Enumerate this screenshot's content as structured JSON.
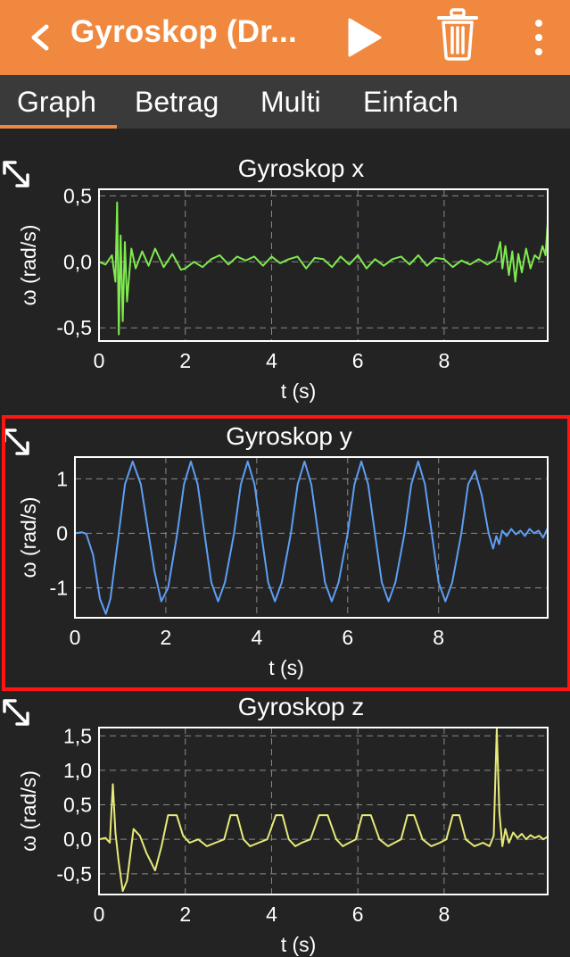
{
  "appbar": {
    "title": "Gyroskop (Dr...",
    "back_icon": "chevron-left-icon",
    "play_icon": "play-icon",
    "trash_icon": "trash-icon",
    "menu_icon": "more-vert-icon",
    "color": "#F0893F"
  },
  "tabs": [
    {
      "label": "Graph",
      "active": true
    },
    {
      "label": "Betrag",
      "active": false
    },
    {
      "label": "Multi",
      "active": false
    },
    {
      "label": "Einfach",
      "active": false
    }
  ],
  "chart_data": [
    {
      "type": "line",
      "title": "Gyroskop x",
      "xlabel": "t (s)",
      "ylabel": "ω (rad/s)",
      "xlim": [
        0,
        10.4
      ],
      "ylim": [
        -0.6,
        0.55
      ],
      "xticks": [
        0,
        2,
        4,
        6,
        8
      ],
      "xtick_labels": [
        "0",
        "2",
        "4",
        "6",
        "8"
      ],
      "yticks": [
        0.5,
        0.0,
        -0.5
      ],
      "ytick_labels": [
        "0,5",
        "0,0",
        "-0,5"
      ],
      "grid": true,
      "series": [
        {
          "color": "#7FEA4E",
          "x": [
            0,
            0.15,
            0.3,
            0.38,
            0.42,
            0.46,
            0.5,
            0.55,
            0.6,
            0.65,
            0.75,
            0.85,
            1.0,
            1.15,
            1.3,
            1.5,
            1.7,
            1.9,
            2.0,
            2.2,
            2.4,
            2.6,
            2.8,
            3.0,
            3.2,
            3.4,
            3.6,
            3.8,
            4.0,
            4.2,
            4.4,
            4.6,
            4.8,
            5.0,
            5.2,
            5.4,
            5.6,
            5.8,
            6.0,
            6.2,
            6.4,
            6.6,
            6.8,
            7.0,
            7.2,
            7.4,
            7.6,
            7.8,
            8.0,
            8.2,
            8.4,
            8.6,
            8.8,
            9.0,
            9.2,
            9.3,
            9.35,
            9.42,
            9.5,
            9.58,
            9.65,
            9.72,
            9.8,
            9.9,
            10.0,
            10.1,
            10.2,
            10.28,
            10.35,
            10.4
          ],
          "y": [
            0.0,
            -0.02,
            0.05,
            -0.15,
            0.45,
            -0.55,
            0.2,
            -0.45,
            0.15,
            -0.3,
            0.1,
            -0.05,
            0.08,
            -0.03,
            0.1,
            -0.04,
            0.06,
            -0.06,
            -0.05,
            0.0,
            -0.04,
            0.02,
            0.05,
            -0.02,
            0.04,
            0.01,
            0.04,
            -0.03,
            0.04,
            -0.01,
            0.02,
            0.04,
            -0.05,
            0.03,
            0.02,
            -0.04,
            0.04,
            -0.02,
            0.05,
            -0.05,
            0.02,
            -0.03,
            0.02,
            0.04,
            -0.02,
            0.05,
            -0.03,
            0.03,
            0.02,
            -0.04,
            0.01,
            -0.02,
            0.02,
            -0.02,
            0.02,
            0.15,
            -0.05,
            0.12,
            -0.1,
            0.08,
            -0.15,
            0.06,
            -0.08,
            0.1,
            -0.05,
            0.05,
            0.02,
            0.12,
            0.05,
            0.3
          ]
        }
      ]
    },
    {
      "type": "line",
      "title": "Gyroskop y",
      "xlabel": "t (s)",
      "ylabel": "ω (rad/s)",
      "xlim": [
        0,
        10.4
      ],
      "ylim": [
        -1.55,
        1.4
      ],
      "xticks": [
        0,
        2,
        4,
        6,
        8
      ],
      "xtick_labels": [
        "0",
        "2",
        "4",
        "6",
        "8"
      ],
      "yticks": [
        1,
        0,
        -1
      ],
      "ytick_labels": [
        "1",
        "0",
        "-1"
      ],
      "grid": true,
      "series": [
        {
          "color": "#5E9EF4",
          "x": [
            0,
            0.15,
            0.25,
            0.4,
            0.55,
            0.68,
            0.78,
            0.95,
            1.1,
            1.27,
            1.45,
            1.6,
            1.75,
            1.9,
            2.05,
            2.25,
            2.4,
            2.55,
            2.7,
            2.85,
            3.0,
            3.15,
            3.3,
            3.5,
            3.65,
            3.8,
            3.95,
            4.1,
            4.25,
            4.4,
            4.55,
            4.75,
            4.9,
            5.05,
            5.2,
            5.35,
            5.5,
            5.65,
            5.8,
            6.0,
            6.15,
            6.3,
            6.45,
            6.6,
            6.75,
            6.9,
            7.05,
            7.25,
            7.4,
            7.55,
            7.7,
            7.85,
            8.0,
            8.15,
            8.3,
            8.5,
            8.65,
            8.8,
            8.95,
            9.1,
            9.2,
            9.27,
            9.33,
            9.4,
            9.5,
            9.6,
            9.7,
            9.8,
            9.9,
            10.0,
            10.1,
            10.2,
            10.3,
            10.4
          ],
          "y": [
            0,
            0.02,
            -0.01,
            -0.4,
            -1.2,
            -1.48,
            -1.2,
            -0.1,
            0.9,
            1.32,
            0.9,
            0.1,
            -0.7,
            -1.25,
            -1.0,
            0.0,
            0.9,
            1.32,
            0.9,
            0.0,
            -0.9,
            -1.25,
            -0.9,
            0.0,
            0.9,
            1.32,
            0.9,
            0.0,
            -0.9,
            -1.25,
            -0.9,
            0.0,
            0.9,
            1.32,
            0.9,
            0.0,
            -0.9,
            -1.25,
            -0.9,
            0.0,
            0.9,
            1.32,
            0.9,
            0.0,
            -0.9,
            -1.25,
            -0.9,
            0.0,
            0.9,
            1.32,
            0.9,
            0.0,
            -0.9,
            -1.25,
            -0.9,
            0.0,
            0.9,
            1.15,
            0.7,
            0.0,
            -0.28,
            -0.05,
            -0.2,
            0.05,
            -0.05,
            0.08,
            -0.02,
            0.05,
            -0.05,
            0.08,
            0.0,
            0.05,
            -0.08,
            0.1
          ]
        }
      ]
    },
    {
      "type": "line",
      "title": "Gyroskop z",
      "xlabel": "t (s)",
      "ylabel": "ω (rad/s)",
      "xlim": [
        0,
        10.4
      ],
      "ylim": [
        -0.8,
        1.62
      ],
      "xticks": [
        0,
        2,
        4,
        6,
        8
      ],
      "xtick_labels": [
        "0",
        "2",
        "4",
        "6",
        "8"
      ],
      "yticks": [
        1.5,
        1.0,
        0.5,
        0.0,
        -0.5
      ],
      "ytick_labels": [
        "1,5",
        "1,0",
        "0,5",
        "0,0",
        "-0,5"
      ],
      "grid": true,
      "series": [
        {
          "color": "#E8EA78",
          "x": [
            0,
            0.15,
            0.25,
            0.32,
            0.38,
            0.45,
            0.55,
            0.65,
            0.8,
            0.95,
            1.1,
            1.3,
            1.45,
            1.6,
            1.8,
            1.95,
            2.1,
            2.3,
            2.5,
            2.7,
            2.9,
            3.05,
            3.2,
            3.35,
            3.5,
            3.7,
            3.9,
            4.1,
            4.25,
            4.4,
            4.55,
            4.7,
            4.9,
            5.1,
            5.3,
            5.5,
            5.65,
            5.8,
            5.95,
            6.1,
            6.3,
            6.5,
            6.7,
            6.85,
            7.0,
            7.15,
            7.3,
            7.5,
            7.7,
            7.9,
            8.05,
            8.2,
            8.35,
            8.5,
            8.7,
            8.9,
            9.05,
            9.15,
            9.22,
            9.28,
            9.35,
            9.42,
            9.5,
            9.6,
            9.7,
            9.8,
            9.9,
            10.0,
            10.1,
            10.2,
            10.3,
            10.4
          ],
          "y": [
            0.0,
            0.02,
            -0.05,
            0.8,
            0.1,
            -0.3,
            -0.75,
            -0.6,
            0.15,
            0.05,
            -0.2,
            -0.45,
            -0.1,
            0.35,
            0.35,
            0.05,
            -0.05,
            0.0,
            -0.1,
            -0.05,
            0.0,
            0.35,
            0.35,
            0.0,
            -0.1,
            -0.05,
            0.0,
            0.35,
            0.35,
            0.0,
            -0.1,
            -0.05,
            0.0,
            0.35,
            0.35,
            0.0,
            -0.1,
            -0.05,
            0.0,
            0.35,
            0.35,
            0.0,
            -0.1,
            -0.05,
            0.0,
            0.35,
            0.35,
            0.0,
            -0.1,
            -0.05,
            0.0,
            0.35,
            0.35,
            0.0,
            -0.1,
            -0.05,
            -0.1,
            0.05,
            1.6,
            0.4,
            -0.1,
            0.15,
            -0.05,
            0.1,
            0.02,
            0.08,
            0.0,
            0.06,
            0.02,
            0.05,
            0.0,
            0.04
          ]
        }
      ]
    }
  ]
}
